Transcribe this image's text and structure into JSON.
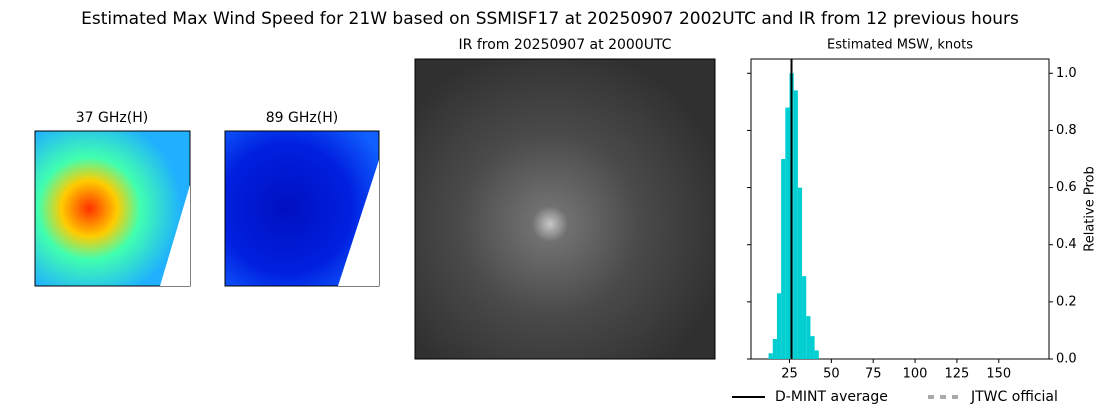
{
  "title": "Estimated Max Wind Speed for 21W based on SSMISF17 at 20250907 2002UTC and IR from 12 previous hours",
  "panels": [
    {
      "title": "37 GHz(H)"
    },
    {
      "title": "89 GHz(H)"
    },
    {
      "title": "IR from 20250907 at 2000UTC"
    }
  ],
  "chart_data": {
    "type": "histogram",
    "title": "Estimated MSW, knots",
    "y_label": "Relative Prob",
    "bins": [
      12.5,
      15,
      17.5,
      20,
      22.5,
      25,
      27.5,
      30,
      32.5,
      35,
      37.5,
      40,
      42.5
    ],
    "values": [
      0.02,
      0.07,
      0.23,
      0.7,
      0.88,
      1.0,
      0.94,
      0.6,
      0.29,
      0.15,
      0.08,
      0.03
    ],
    "color": "#00ced1",
    "xlim": [
      2,
      180
    ],
    "xticks": [
      25,
      50,
      75,
      100,
      125,
      150
    ],
    "ylim": [
      0,
      1.05
    ],
    "yticks": [
      {
        "value": 0,
        "label": "0.0"
      },
      {
        "value": 0.2,
        "label": "0.2"
      },
      {
        "value": 0.4,
        "label": "0.4"
      },
      {
        "value": 0.6,
        "label": "0.6"
      },
      {
        "value": 0.8,
        "label": "0.8"
      },
      {
        "value": 1.0,
        "label": "1.0"
      }
    ],
    "series": [
      {
        "name": "D-MINT average",
        "color": "#000000",
        "x": 26.2
      },
      {
        "name": "JTWC official",
        "color": "#aaaaaa",
        "style": "dashed"
      }
    ]
  }
}
